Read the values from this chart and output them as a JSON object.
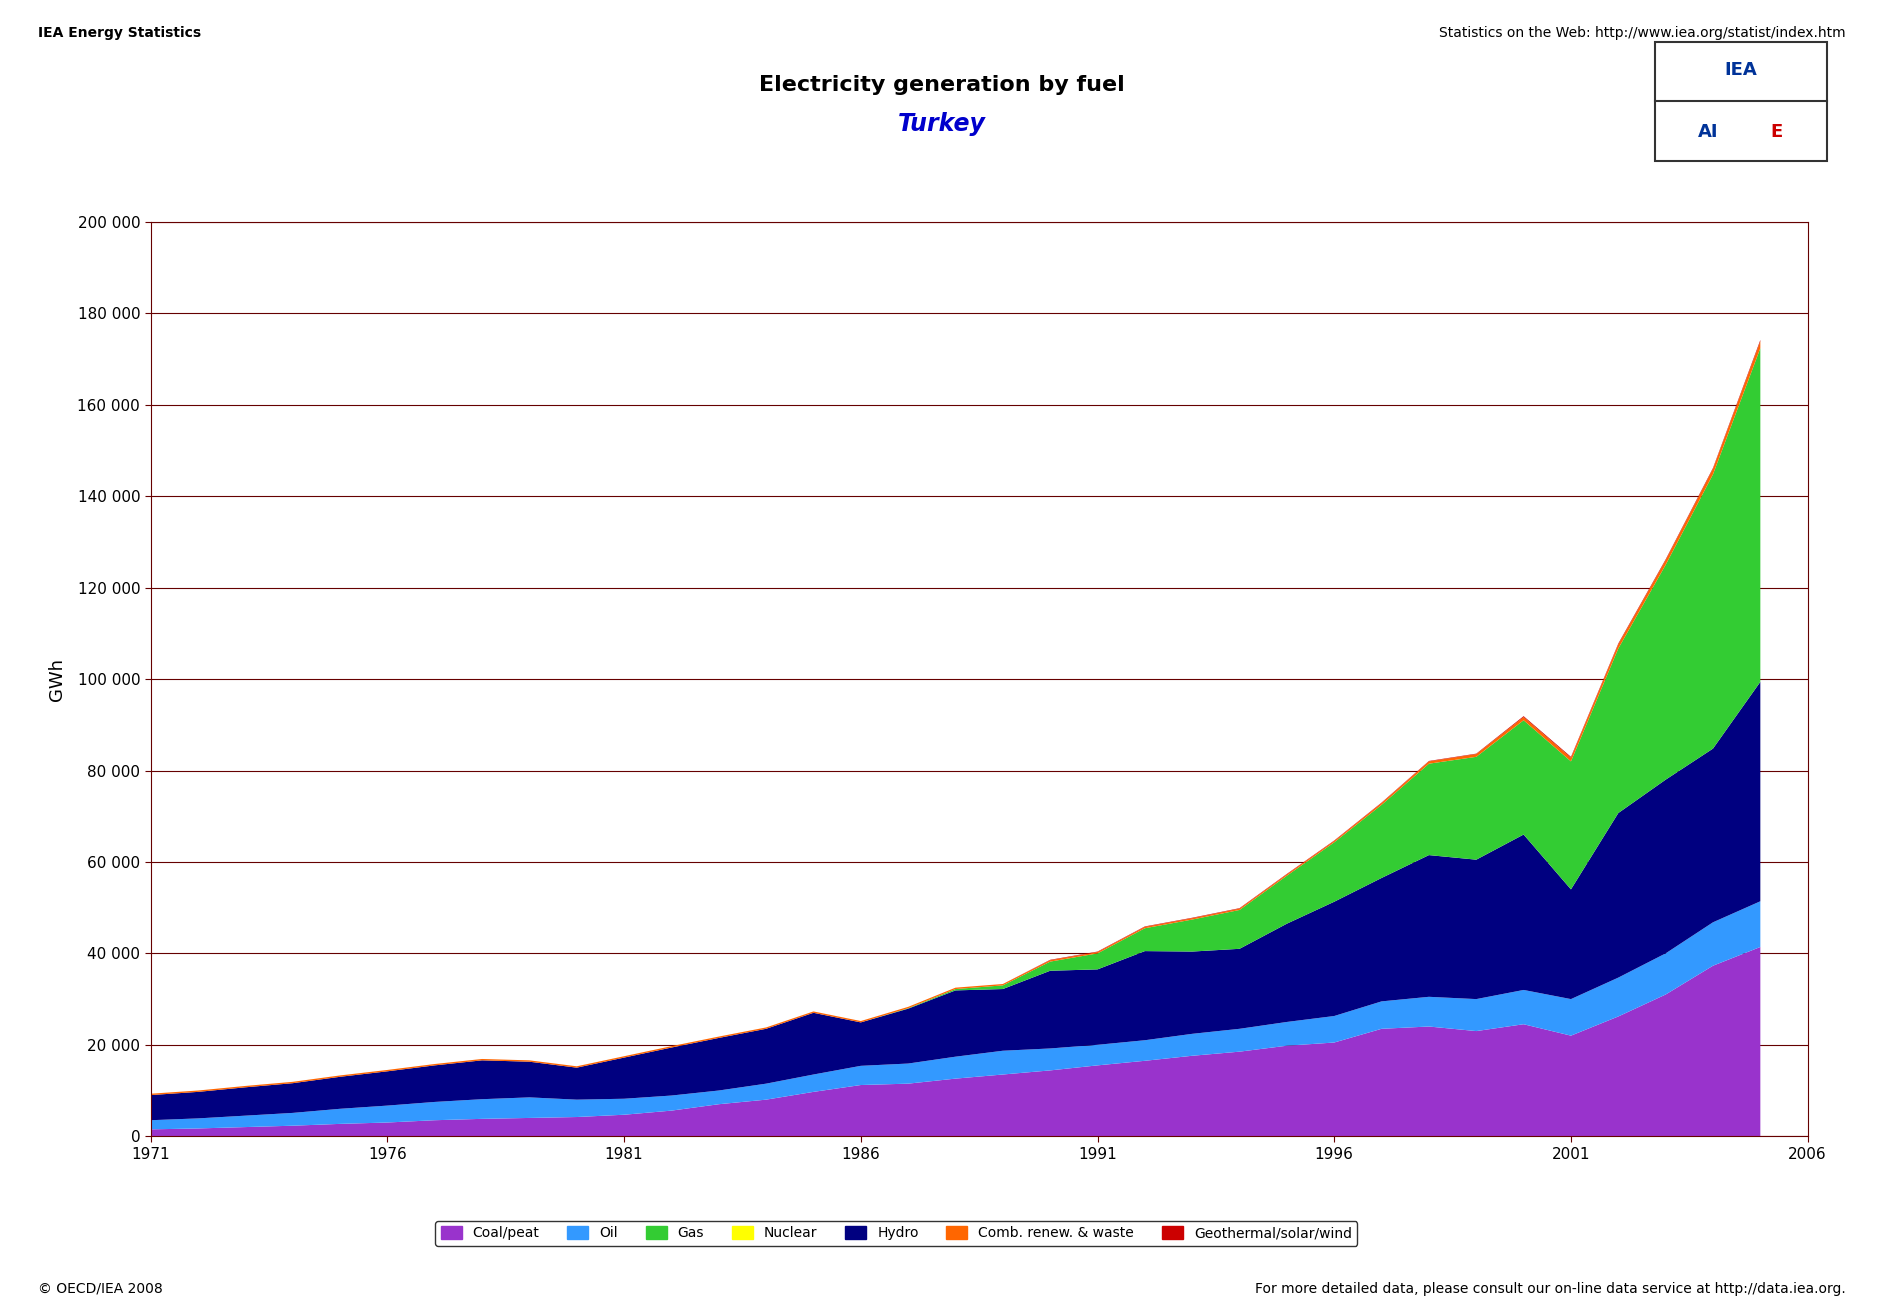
{
  "title1": "Electricity generation by fuel",
  "title2": "Turkey",
  "ylabel": "GWh",
  "header_left": "IEA Energy Statistics",
  "header_right": "Statistics on the Web: http://www.iea.org/statist/index.htm",
  "footer_left": "© OECD/IEA 2008",
  "footer_right": "For more detailed data, please consult our on-line data service at http://data.iea.org.",
  "years": [
    1971,
    1972,
    1973,
    1974,
    1975,
    1976,
    1977,
    1978,
    1979,
    1980,
    1981,
    1982,
    1983,
    1984,
    1985,
    1986,
    1987,
    1988,
    1989,
    1990,
    1991,
    1992,
    1993,
    1994,
    1995,
    1996,
    1997,
    1998,
    1999,
    2000,
    2001,
    2002,
    2003,
    2004,
    2005
  ],
  "coal_peat": [
    1500,
    1700,
    2000,
    2300,
    2700,
    3000,
    3500,
    3800,
    4000,
    4200,
    4700,
    5600,
    7000,
    8000,
    9700,
    11200,
    11500,
    12600,
    13500,
    14400,
    15500,
    16500,
    17600,
    18500,
    19800,
    20500,
    23500,
    24000,
    23000,
    24500,
    22000,
    26200,
    31000,
    37300,
    41400
  ],
  "oil": [
    2000,
    2200,
    2500,
    2800,
    3300,
    3700,
    4000,
    4300,
    4500,
    3800,
    3500,
    3300,
    3000,
    3500,
    3800,
    4200,
    4400,
    4800,
    5200,
    4800,
    4500,
    4500,
    4800,
    5000,
    5200,
    5800,
    6000,
    6500,
    7000,
    7500,
    8000,
    8500,
    9000,
    9500,
    10000
  ],
  "gas": [
    0,
    0,
    0,
    0,
    0,
    0,
    0,
    0,
    0,
    0,
    0,
    0,
    0,
    0,
    0,
    0,
    100,
    300,
    800,
    2000,
    3500,
    5000,
    7000,
    8500,
    10500,
    13000,
    16000,
    20000,
    22500,
    25000,
    28000,
    36000,
    47000,
    60000,
    73000
  ],
  "nuclear": [
    0,
    0,
    0,
    0,
    0,
    0,
    0,
    0,
    0,
    0,
    0,
    0,
    0,
    0,
    0,
    0,
    0,
    0,
    0,
    0,
    0,
    0,
    0,
    0,
    0,
    0,
    0,
    0,
    0,
    0,
    0,
    0,
    0,
    0,
    0
  ],
  "hydro": [
    5500,
    5800,
    6200,
    6500,
    7000,
    7500,
    8000,
    8500,
    7800,
    7000,
    9000,
    10500,
    11500,
    12000,
    13500,
    9500,
    12000,
    14500,
    13500,
    17000,
    16500,
    19500,
    18000,
    17500,
    21500,
    25000,
    27000,
    31000,
    30500,
    34000,
    24000,
    36000,
    38000,
    38000,
    48000
  ],
  "comb_renew": [
    300,
    300,
    300,
    300,
    300,
    300,
    300,
    300,
    300,
    300,
    300,
    300,
    300,
    300,
    300,
    300,
    300,
    300,
    300,
    300,
    300,
    300,
    300,
    300,
    300,
    300,
    400,
    500,
    600,
    700,
    800,
    900,
    1000,
    1200,
    1500
  ],
  "geothermal": [
    0,
    0,
    0,
    0,
    0,
    0,
    0,
    0,
    0,
    0,
    0,
    0,
    0,
    0,
    0,
    0,
    0,
    0,
    0,
    100,
    100,
    100,
    100,
    100,
    100,
    100,
    100,
    100,
    100,
    200,
    200,
    200,
    200,
    200,
    300
  ],
  "colors": {
    "coal_peat": "#9933cc",
    "oil": "#3399ff",
    "gas": "#33cc33",
    "nuclear": "#ffff00",
    "hydro": "#000080",
    "comb_renew": "#ff6600",
    "geothermal": "#cc0000"
  },
  "grid_color": "#660000",
  "spine_color": "#660000",
  "ylim": [
    0,
    200000
  ],
  "yticks": [
    0,
    20000,
    40000,
    60000,
    80000,
    100000,
    120000,
    140000,
    160000,
    180000,
    200000
  ],
  "xticks": [
    1971,
    1976,
    1981,
    1986,
    1991,
    1996,
    2001,
    2006
  ],
  "legend_labels": [
    "Coal/peat",
    "Oil",
    "Gas",
    "Nuclear",
    "Hydro",
    "Comb. renew. & waste",
    "Geothermal/solar/wind"
  ],
  "bg_color": "#ffffff"
}
